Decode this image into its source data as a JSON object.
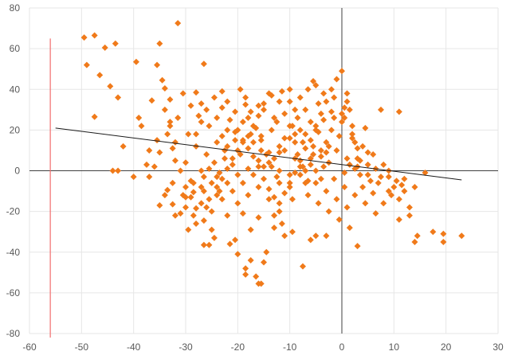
{
  "chart_data": {
    "type": "scatter",
    "xlim": [
      -60,
      30
    ],
    "ylim": [
      -80,
      80
    ],
    "x_ticks": [
      "-60",
      "-50",
      "-40",
      "-30",
      "-20",
      "-10",
      "0",
      "10",
      "20",
      "30"
    ],
    "y_ticks": [
      "-80",
      "-60",
      "-40",
      "-20",
      "0",
      "20",
      "40",
      "60",
      "80"
    ],
    "grid": true,
    "legend": "none",
    "colors": {
      "points": "#f07a1a",
      "trendline": "#1a1a1a",
      "reference_line": "#f26d6d",
      "axis": "#404040",
      "grid": "#e6e6e6",
      "tick_text": "#595959"
    },
    "reference_line": {
      "x": -56,
      "y_range": [
        -82,
        65
      ]
    },
    "trendline": {
      "x": [
        -55,
        23
      ],
      "y": [
        21,
        -4.5
      ]
    },
    "points": [
      [
        -49.5,
        65.5
      ],
      [
        -47.5,
        66.5
      ],
      [
        -45.5,
        60.5
      ],
      [
        -43.5,
        62.5
      ],
      [
        -49,
        52
      ],
      [
        -46.5,
        47
      ],
      [
        -44.5,
        41.5
      ],
      [
        -43,
        36
      ],
      [
        -47.5,
        26.5
      ],
      [
        -42,
        12
      ],
      [
        -43,
        0
      ],
      [
        -44,
        0
      ],
      [
        -39.5,
        53.5
      ],
      [
        -36.5,
        34.5
      ],
      [
        -35,
        62.5
      ],
      [
        -35.5,
        52
      ],
      [
        -34.5,
        44.5
      ],
      [
        -34,
        40.5
      ],
      [
        -33,
        35
      ],
      [
        -31.5,
        72.5
      ],
      [
        -39,
        26
      ],
      [
        -37.5,
        3
      ],
      [
        -37,
        -3
      ],
      [
        -35.5,
        15
      ],
      [
        -34,
        30
      ],
      [
        -33,
        22
      ],
      [
        -32.5,
        11
      ],
      [
        -33.5,
        -9.5
      ],
      [
        -32.5,
        -16.5
      ],
      [
        -31,
        -21
      ],
      [
        -30,
        -13
      ],
      [
        -32,
        5
      ],
      [
        -29.5,
        -29
      ],
      [
        -28,
        38.5
      ],
      [
        -26.5,
        52.5
      ],
      [
        -27,
        33
      ],
      [
        -25.5,
        22
      ],
      [
        -24,
        26
      ],
      [
        -23,
        17
      ],
      [
        -28,
        -18.5
      ],
      [
        -26.5,
        -24.5
      ],
      [
        -25,
        -29
      ],
      [
        -24.5,
        -33
      ],
      [
        -26.5,
        -36.5
      ],
      [
        -25.5,
        -36.5
      ],
      [
        -23.5,
        -10
      ],
      [
        -22,
        -22
      ],
      [
        -20.5,
        -34
      ],
      [
        -21.5,
        -36
      ],
      [
        -30,
        4
      ],
      [
        -29,
        -5
      ],
      [
        -28.5,
        -10.5
      ],
      [
        -27,
        0
      ],
      [
        -25.5,
        1
      ],
      [
        -24,
        -3
      ],
      [
        -22.5,
        6
      ],
      [
        -22,
        12
      ],
      [
        -20.5,
        19
      ],
      [
        -19.5,
        40
      ],
      [
        -18.5,
        32.5
      ],
      [
        -17.5,
        29
      ],
      [
        -16.5,
        21
      ],
      [
        -15.5,
        15
      ],
      [
        -14.5,
        8
      ],
      [
        -13.5,
        2
      ],
      [
        -12.5,
        -3
      ],
      [
        -12,
        9
      ],
      [
        -11,
        16
      ],
      [
        -10,
        22
      ],
      [
        -9,
        18
      ],
      [
        -8.5,
        8
      ],
      [
        -7.5,
        2
      ],
      [
        -6.5,
        -5
      ],
      [
        -5.5,
        12
      ],
      [
        -4.5,
        19
      ],
      [
        -3.5,
        25
      ],
      [
        -3,
        34
      ],
      [
        -2,
        40
      ],
      [
        -1,
        45
      ],
      [
        0,
        49
      ],
      [
        1,
        38
      ],
      [
        1.5,
        30
      ],
      [
        2,
        22
      ],
      [
        2.5,
        14
      ],
      [
        3,
        6
      ],
      [
        3.5,
        -2
      ],
      [
        4,
        -8
      ],
      [
        4.5,
        21
      ],
      [
        5,
        3
      ],
      [
        6,
        -11
      ],
      [
        6.5,
        -21
      ],
      [
        7.5,
        30
      ],
      [
        8,
        3
      ],
      [
        9,
        -3
      ],
      [
        10,
        -8
      ],
      [
        11,
        29
      ],
      [
        11,
        -24
      ],
      [
        12,
        -10
      ],
      [
        13,
        -22
      ],
      [
        14,
        -35
      ],
      [
        14.5,
        -32
      ],
      [
        16,
        -1
      ],
      [
        17.5,
        -30
      ],
      [
        19.5,
        -31
      ],
      [
        19.5,
        -35
      ],
      [
        23,
        -32
      ],
      [
        8,
        -16
      ],
      [
        9.5,
        -12
      ],
      [
        5.5,
        -5
      ],
      [
        2.5,
        1
      ],
      [
        3.5,
        5
      ],
      [
        -1.5,
        26
      ],
      [
        -3,
        9
      ],
      [
        -4,
        -4
      ],
      [
        -5,
        -32
      ],
      [
        -6,
        -34
      ],
      [
        -3,
        -32
      ],
      [
        -7.5,
        -47
      ],
      [
        -11,
        -32
      ],
      [
        -13,
        -28
      ],
      [
        -14.5,
        -40
      ],
      [
        -15,
        -45
      ],
      [
        -15.5,
        -55.5
      ],
      [
        -16,
        -55.5
      ],
      [
        -16.5,
        -52
      ],
      [
        -17.5,
        -44
      ],
      [
        -18.5,
        -48
      ],
      [
        -18.5,
        -51
      ],
      [
        -20,
        -41
      ],
      [
        -16,
        -23
      ],
      [
        -17.5,
        -29
      ],
      [
        -19,
        -21
      ],
      [
        -12,
        -20
      ],
      [
        -9.5,
        -14
      ],
      [
        -7,
        -6
      ],
      [
        -5,
        0
      ],
      [
        -2.5,
        4
      ],
      [
        0.5,
        -1
      ],
      [
        1.5,
        3
      ],
      [
        -0.5,
        17
      ],
      [
        0,
        24
      ],
      [
        0.5,
        31
      ],
      [
        -1.5,
        36
      ],
      [
        -5.5,
        44
      ],
      [
        -6.5,
        40
      ],
      [
        -8,
        36
      ],
      [
        -9,
        30
      ],
      [
        -10,
        34
      ],
      [
        -11.5,
        39
      ],
      [
        -13.5,
        37
      ],
      [
        -15,
        33
      ],
      [
        -16,
        27
      ],
      [
        -17,
        22
      ],
      [
        -18,
        17
      ],
      [
        -19,
        14
      ],
      [
        -20,
        10
      ],
      [
        -21,
        6
      ],
      [
        -22,
        1
      ],
      [
        -23,
        -4
      ],
      [
        -24,
        -8
      ],
      [
        -25.5,
        -14
      ],
      [
        -27,
        -16
      ],
      [
        -28.5,
        -22
      ],
      [
        -30,
        -8
      ],
      [
        -31,
        0
      ],
      [
        -32,
        14
      ],
      [
        -33,
        24
      ],
      [
        -29.5,
        18
      ],
      [
        -28,
        12
      ],
      [
        -27,
        24
      ],
      [
        -26,
        30
      ],
      [
        -24.5,
        36
      ],
      [
        -23,
        31
      ],
      [
        -21.5,
        25
      ],
      [
        -20,
        20
      ],
      [
        -19,
        15
      ],
      [
        -18,
        11
      ],
      [
        -17,
        7
      ],
      [
        -16,
        2
      ],
      [
        -15,
        -4
      ],
      [
        -14,
        -9
      ],
      [
        -13,
        -13
      ],
      [
        -12,
        -16
      ],
      [
        -11,
        -11
      ],
      [
        -10,
        -6
      ],
      [
        -9,
        -1
      ],
      [
        -8,
        5
      ],
      [
        -7,
        11
      ],
      [
        -6,
        15
      ],
      [
        -5,
        20
      ],
      [
        -4,
        28
      ],
      [
        -6,
        24
      ],
      [
        -8,
        20
      ],
      [
        -10,
        16
      ],
      [
        -12,
        12
      ],
      [
        -14,
        9
      ],
      [
        -16,
        5
      ],
      [
        -18,
        1
      ],
      [
        -20,
        -2
      ],
      [
        -22,
        -6
      ],
      [
        -24,
        -12
      ],
      [
        -26,
        -18
      ],
      [
        -28,
        -26
      ],
      [
        -12.5,
        24
      ],
      [
        -11,
        28
      ],
      [
        -13.5,
        20
      ],
      [
        -15.5,
        17
      ],
      [
        -17,
        14
      ],
      [
        -19.5,
        8
      ],
      [
        -21,
        3
      ],
      [
        -23.5,
        -1
      ],
      [
        -25,
        -6
      ],
      [
        -26.5,
        -10
      ],
      [
        -8.5,
        26
      ],
      [
        -7,
        30
      ],
      [
        -4.5,
        33
      ],
      [
        -2,
        29
      ],
      [
        0.5,
        26
      ],
      [
        2,
        18
      ],
      [
        3,
        11
      ],
      [
        5,
        9
      ],
      [
        6.5,
        1
      ],
      [
        7.5,
        -3
      ],
      [
        9,
        0
      ],
      [
        10.5,
        -5
      ],
      [
        11.5,
        -7
      ],
      [
        -2.5,
        12
      ],
      [
        -4,
        7
      ],
      [
        -6,
        3
      ],
      [
        -8,
        -2
      ],
      [
        -10,
        -8
      ],
      [
        -12,
        0
      ],
      [
        -14,
        4
      ],
      [
        -15.5,
        10
      ],
      [
        -17.5,
        18
      ],
      [
        -19,
        24
      ],
      [
        -20.5,
        29
      ],
      [
        -22,
        34
      ],
      [
        -23,
        39
      ],
      [
        -27.5,
        27
      ],
      [
        -29,
        32
      ],
      [
        -30.5,
        38
      ],
      [
        -31.5,
        26
      ],
      [
        -33.5,
        18
      ],
      [
        -35,
        9
      ],
      [
        -36,
        2
      ],
      [
        -37,
        10
      ],
      [
        -38.5,
        22
      ],
      [
        -40,
        -3
      ],
      [
        -34,
        -12
      ],
      [
        -35,
        -17
      ],
      [
        -32,
        -22
      ],
      [
        -30,
        -18
      ],
      [
        -29,
        -13
      ],
      [
        -27,
        -8
      ],
      [
        -25,
        -20
      ],
      [
        -23,
        -14
      ],
      [
        -21,
        -10
      ],
      [
        -19,
        -6
      ],
      [
        -17,
        -2
      ],
      [
        -15,
        2
      ],
      [
        -13,
        6
      ],
      [
        -11,
        10
      ],
      [
        -9,
        14
      ],
      [
        -7,
        18
      ],
      [
        -5,
        22
      ],
      [
        -3,
        14
      ],
      [
        -1,
        10
      ],
      [
        1,
        6
      ],
      [
        3,
        2
      ],
      [
        5,
        -2
      ],
      [
        7,
        -6
      ],
      [
        9,
        -10
      ],
      [
        11,
        -14
      ],
      [
        13,
        -18
      ],
      [
        -6.5,
        -12
      ],
      [
        -4.5,
        -16
      ],
      [
        -2.5,
        -20
      ],
      [
        -0.5,
        -24
      ],
      [
        1.5,
        -28
      ],
      [
        3,
        -37
      ],
      [
        -13,
        -22
      ],
      [
        -11.5,
        -26
      ],
      [
        -9.5,
        -30
      ],
      [
        -15,
        30
      ],
      [
        -13,
        26
      ],
      [
        -9.5,
        22
      ],
      [
        -7.5,
        14
      ],
      [
        -5.5,
        8
      ],
      [
        -3.5,
        2
      ],
      [
        -1.5,
        -4
      ],
      [
        0.5,
        -8
      ],
      [
        2.5,
        -12
      ],
      [
        4.5,
        -16
      ],
      [
        -28,
        18
      ],
      [
        -26,
        8
      ],
      [
        -24,
        14
      ],
      [
        -22,
        20
      ],
      [
        -18,
        26
      ],
      [
        -16,
        32
      ],
      [
        -14,
        38
      ],
      [
        -12,
        34
      ],
      [
        -10,
        40
      ],
      [
        -18.5,
        36
      ],
      [
        -20.5,
        15
      ],
      [
        -22.5,
        10
      ],
      [
        -24.5,
        4
      ],
      [
        -26.5,
        -3
      ],
      [
        -28.5,
        -6
      ],
      [
        -30.5,
        -12
      ],
      [
        -32.5,
        -6
      ],
      [
        -9,
        6
      ],
      [
        -7,
        0
      ],
      [
        -5,
        -6
      ],
      [
        -3,
        -10
      ],
      [
        -1,
        -14
      ],
      [
        1,
        -18
      ],
      [
        12,
        -4
      ],
      [
        14,
        -8
      ],
      [
        6,
        8
      ],
      [
        4,
        12
      ],
      [
        2,
        16
      ],
      [
        -20,
        -16
      ],
      [
        -18,
        -12
      ],
      [
        -16,
        -8
      ],
      [
        -14,
        -14
      ],
      [
        -12,
        -6
      ],
      [
        -10,
        -2
      ],
      [
        -8,
        2
      ],
      [
        -6,
        6
      ],
      [
        -4,
        10
      ],
      [
        -2,
        20
      ],
      [
        0,
        28
      ],
      [
        1,
        34
      ],
      [
        -3.5,
        38
      ],
      [
        -5,
        42
      ]
    ]
  }
}
